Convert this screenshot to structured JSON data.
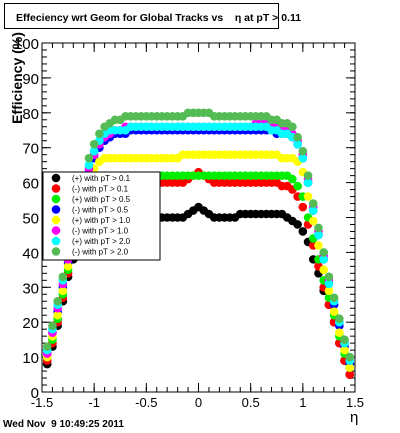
{
  "page": {
    "footer_timestamp": "Wed Nov  9 10:49:25 2011"
  },
  "chart_data": {
    "type": "scatter",
    "title": "Effeciency wrt Geom for Global Tracks vs    η at pT > 0.11",
    "xlabel": "η",
    "ylabel": "Efficiency (%)",
    "xlim": [
      -1.5,
      1.5
    ],
    "ylim": [
      0,
      100
    ],
    "x_ticks": [
      "-1.5",
      "-1",
      "-0.5",
      "0",
      "0.5",
      "1",
      "1.5"
    ],
    "y_ticks": [
      "0",
      "10",
      "20",
      "30",
      "40",
      "50",
      "60",
      "70",
      "80",
      "90",
      "100"
    ],
    "grid": false,
    "legend_position": "left-center",
    "x": [
      -1.45,
      -1.4,
      -1.35,
      -1.3,
      -1.25,
      -1.2,
      -1.15,
      -1.1,
      -1.05,
      -1.0,
      -0.95,
      -0.9,
      -0.85,
      -0.8,
      -0.75,
      -0.7,
      -0.65,
      -0.6,
      -0.55,
      -0.5,
      -0.45,
      -0.4,
      -0.35,
      -0.3,
      -0.25,
      -0.2,
      -0.15,
      -0.1,
      -0.05,
      0.0,
      0.05,
      0.1,
      0.15,
      0.2,
      0.25,
      0.3,
      0.35,
      0.4,
      0.45,
      0.5,
      0.55,
      0.6,
      0.65,
      0.7,
      0.75,
      0.8,
      0.85,
      0.9,
      0.95,
      1.0,
      1.05,
      1.1,
      1.15,
      1.2,
      1.25,
      1.3,
      1.35,
      1.4,
      1.45
    ],
    "series": [
      {
        "name": "(+) with pT > 0.1",
        "color": "#000000",
        "values": [
          8,
          13,
          19,
          26,
          33,
          38,
          42,
          45,
          47,
          49,
          50,
          50,
          51,
          51,
          51,
          51,
          51,
          51,
          51,
          50,
          50,
          50,
          50,
          50,
          50,
          50,
          50,
          51,
          52,
          53,
          52,
          51,
          50,
          50,
          50,
          50,
          50,
          51,
          51,
          51,
          51,
          51,
          51,
          51,
          51,
          51,
          50,
          49,
          48,
          46,
          43,
          38,
          34,
          29,
          25,
          20,
          14,
          9,
          5
        ]
      },
      {
        "name": "(-) with pT > 0.1",
        "color": "#ff0000",
        "values": [
          9,
          14,
          20,
          27,
          34,
          40,
          45,
          49,
          53,
          56,
          58,
          59,
          59,
          60,
          60,
          60,
          60,
          60,
          60,
          60,
          60,
          60,
          60,
          60,
          60,
          60,
          60,
          61,
          62,
          63,
          62,
          61,
          60,
          60,
          60,
          60,
          60,
          60,
          60,
          60,
          60,
          60,
          60,
          60,
          60,
          59,
          59,
          58,
          56,
          53,
          48,
          42,
          36,
          30,
          25,
          20,
          14,
          9,
          5
        ]
      },
      {
        "name": "(+) with pT > 0.5",
        "color": "#00ee00",
        "values": [
          10,
          15,
          21,
          28,
          35,
          42,
          48,
          53,
          57,
          60,
          61,
          62,
          62,
          62,
          62,
          62,
          62,
          62,
          62,
          62,
          62,
          62,
          62,
          62,
          62,
          62,
          62,
          62,
          62,
          62,
          62,
          62,
          62,
          62,
          62,
          62,
          62,
          62,
          62,
          62,
          62,
          62,
          62,
          62,
          62,
          62,
          62,
          61,
          59,
          56,
          50,
          44,
          38,
          32,
          27,
          22,
          16,
          11,
          7
        ]
      },
      {
        "name": "(-) with pT > 0.5",
        "color": "#0000ff",
        "values": [
          11,
          17,
          23,
          30,
          37,
          45,
          52,
          58,
          63,
          67,
          70,
          72,
          73,
          74,
          74,
          74,
          75,
          75,
          75,
          75,
          75,
          75,
          75,
          75,
          75,
          75,
          75,
          75,
          75,
          75,
          75,
          75,
          75,
          75,
          75,
          75,
          75,
          75,
          75,
          75,
          75,
          75,
          75,
          75,
          74,
          74,
          74,
          73,
          71,
          67,
          60,
          52,
          45,
          38,
          31,
          25,
          19,
          13,
          8
        ]
      },
      {
        "name": "(+) with pT > 1.0",
        "color": "#ffff00",
        "values": [
          10,
          16,
          22,
          29,
          36,
          43,
          50,
          55,
          60,
          64,
          66,
          67,
          67,
          67,
          67,
          67,
          67,
          67,
          67,
          67,
          67,
          67,
          67,
          67,
          67,
          67,
          68,
          68,
          68,
          68,
          68,
          68,
          68,
          68,
          68,
          68,
          68,
          68,
          68,
          68,
          68,
          68,
          68,
          68,
          68,
          67,
          67,
          67,
          66,
          63,
          56,
          49,
          42,
          35,
          29,
          23,
          17,
          12,
          7
        ]
      },
      {
        "name": "(-) with pT > 1.0",
        "color": "#ff00ff",
        "values": [
          11,
          17,
          24,
          31,
          38,
          46,
          53,
          59,
          64,
          68,
          71,
          73,
          74,
          75,
          75,
          76,
          76,
          76,
          76,
          76,
          76,
          76,
          76,
          76,
          76,
          76,
          76,
          76,
          76,
          76,
          76,
          76,
          76,
          76,
          76,
          76,
          76,
          76,
          76,
          76,
          77,
          77,
          77,
          76,
          76,
          75,
          75,
          74,
          72,
          68,
          61,
          53,
          46,
          39,
          32,
          26,
          20,
          14,
          9
        ]
      },
      {
        "name": "(+) with pT > 2.0",
        "color": "#00ffff",
        "values": [
          12,
          18,
          25,
          32,
          39,
          47,
          54,
          60,
          65,
          69,
          72,
          74,
          75,
          75,
          75,
          75,
          76,
          76,
          76,
          76,
          76,
          76,
          76,
          76,
          76,
          76,
          76,
          76,
          76,
          76,
          76,
          76,
          76,
          76,
          76,
          76,
          76,
          76,
          76,
          76,
          76,
          76,
          76,
          75,
          75,
          74,
          74,
          73,
          71,
          67,
          60,
          52,
          45,
          38,
          31,
          26,
          20,
          14,
          9
        ]
      },
      {
        "name": "(-) with pT > 2.0",
        "color": "#55bb55",
        "values": [
          13,
          19,
          26,
          33,
          41,
          49,
          56,
          62,
          67,
          71,
          74,
          76,
          77,
          78,
          78,
          79,
          79,
          79,
          79,
          79,
          79,
          79,
          79,
          79,
          79,
          79,
          79,
          80,
          80,
          80,
          80,
          80,
          79,
          79,
          79,
          79,
          79,
          79,
          79,
          79,
          79,
          79,
          79,
          78,
          78,
          77,
          77,
          76,
          73,
          69,
          62,
          54,
          47,
          40,
          33,
          27,
          21,
          15,
          10
        ]
      }
    ]
  }
}
